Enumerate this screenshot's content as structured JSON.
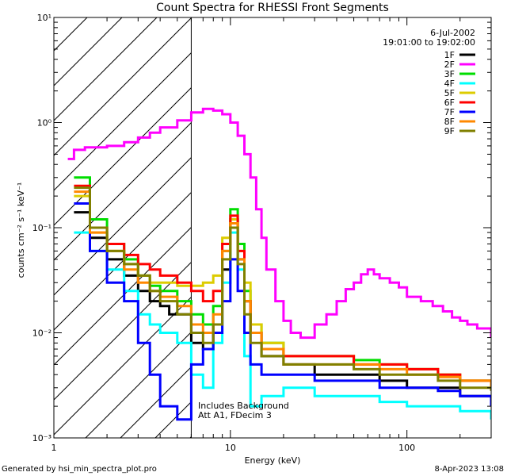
{
  "chart_data": {
    "type": "line",
    "title": "Count Spectra for RHESSI Front Segments",
    "xlabel": "Energy (keV)",
    "ylabel": "counts cm⁻² s⁻¹ keV⁻¹",
    "x_scale": "log",
    "y_scale": "log",
    "xlim": [
      1,
      300
    ],
    "ylim": [
      0.001,
      10
    ],
    "x_ticks": [
      {
        "value": 1,
        "label": "1"
      },
      {
        "value": 10,
        "label": "10"
      },
      {
        "value": 100,
        "label": "100"
      }
    ],
    "y_ticks": [
      {
        "value": 0.001,
        "label": "10⁻³"
      },
      {
        "value": 0.01,
        "label": "10⁻²"
      },
      {
        "value": 0.1,
        "label": "10⁻¹"
      },
      {
        "value": 1,
        "label": "10⁰"
      },
      {
        "value": 10,
        "label": "10¹"
      }
    ],
    "date": "6-Jul-2002",
    "time_range": "19:01:00 to 19:02:00",
    "hatched_region_max_keV": 6,
    "annotations": [
      "Includes Background",
      "Att A1, FDecim 3"
    ],
    "series": [
      {
        "name": "1F",
        "color": "#000000",
        "points": [
          [
            1.3,
            0.14
          ],
          [
            1.6,
            0.08
          ],
          [
            2,
            0.05
          ],
          [
            2.5,
            0.035
          ],
          [
            3,
            0.025
          ],
          [
            3.5,
            0.02
          ],
          [
            4,
            0.018
          ],
          [
            4.5,
            0.015
          ],
          [
            5,
            0.015
          ],
          [
            6,
            0.008
          ],
          [
            7,
            0.007
          ],
          [
            8,
            0.012
          ],
          [
            9,
            0.04
          ],
          [
            10,
            0.12
          ],
          [
            11,
            0.05
          ],
          [
            12,
            0.02
          ],
          [
            13,
            0.01
          ],
          [
            15,
            0.006
          ],
          [
            20,
            0.005
          ],
          [
            30,
            0.004
          ],
          [
            50,
            0.004
          ],
          [
            70,
            0.0035
          ],
          [
            100,
            0.003
          ],
          [
            150,
            0.003
          ],
          [
            200,
            0.0025
          ],
          [
            300,
            0.002
          ]
        ]
      },
      {
        "name": "2F",
        "color": "#ff00ff",
        "points": [
          [
            1.2,
            0.45
          ],
          [
            1.3,
            0.55
          ],
          [
            1.5,
            0.58
          ],
          [
            2,
            0.6
          ],
          [
            2.5,
            0.65
          ],
          [
            3,
            0.72
          ],
          [
            3.5,
            0.8
          ],
          [
            4,
            0.9
          ],
          [
            5,
            1.05
          ],
          [
            6,
            1.25
          ],
          [
            7,
            1.35
          ],
          [
            8,
            1.3
          ],
          [
            9,
            1.2
          ],
          [
            10,
            1.0
          ],
          [
            11,
            0.75
          ],
          [
            12,
            0.5
          ],
          [
            13,
            0.3
          ],
          [
            14,
            0.15
          ],
          [
            15,
            0.08
          ],
          [
            16,
            0.04
          ],
          [
            18,
            0.02
          ],
          [
            20,
            0.013
          ],
          [
            22,
            0.01
          ],
          [
            25,
            0.009
          ],
          [
            30,
            0.012
          ],
          [
            35,
            0.015
          ],
          [
            40,
            0.02
          ],
          [
            45,
            0.026
          ],
          [
            50,
            0.03
          ],
          [
            55,
            0.036
          ],
          [
            60,
            0.04
          ],
          [
            65,
            0.036
          ],
          [
            70,
            0.033
          ],
          [
            80,
            0.03
          ],
          [
            90,
            0.027
          ],
          [
            100,
            0.022
          ],
          [
            120,
            0.02
          ],
          [
            140,
            0.018
          ],
          [
            160,
            0.016
          ],
          [
            180,
            0.014
          ],
          [
            200,
            0.013
          ],
          [
            220,
            0.012
          ],
          [
            250,
            0.011
          ],
          [
            300,
            0.009
          ]
        ]
      },
      {
        "name": "3F",
        "color": "#00dd00",
        "points": [
          [
            1.3,
            0.3
          ],
          [
            1.6,
            0.12
          ],
          [
            2,
            0.07
          ],
          [
            2.5,
            0.05
          ],
          [
            3,
            0.035
          ],
          [
            3.5,
            0.028
          ],
          [
            4,
            0.025
          ],
          [
            5,
            0.02
          ],
          [
            6,
            0.015
          ],
          [
            7,
            0.012
          ],
          [
            8,
            0.018
          ],
          [
            9,
            0.06
          ],
          [
            10,
            0.15
          ],
          [
            11,
            0.07
          ],
          [
            12,
            0.025
          ],
          [
            13,
            0.012
          ],
          [
            15,
            0.008
          ],
          [
            20,
            0.006
          ],
          [
            30,
            0.006
          ],
          [
            50,
            0.0055
          ],
          [
            70,
            0.005
          ],
          [
            100,
            0.0045
          ],
          [
            150,
            0.004
          ],
          [
            200,
            0.0035
          ],
          [
            300,
            0.003
          ]
        ]
      },
      {
        "name": "4F",
        "color": "#00ffff",
        "points": [
          [
            1.3,
            0.09
          ],
          [
            1.6,
            0.06
          ],
          [
            2,
            0.04
          ],
          [
            2.5,
            0.025
          ],
          [
            3,
            0.015
          ],
          [
            3.5,
            0.012
          ],
          [
            4,
            0.01
          ],
          [
            5,
            0.008
          ],
          [
            6,
            0.004
          ],
          [
            7,
            0.003
          ],
          [
            8,
            0.008
          ],
          [
            9,
            0.03
          ],
          [
            10,
            0.09
          ],
          [
            11,
            0.04
          ],
          [
            12,
            0.006
          ],
          [
            13,
            0.002
          ],
          [
            15,
            0.0025
          ],
          [
            20,
            0.003
          ],
          [
            30,
            0.0025
          ],
          [
            50,
            0.0025
          ],
          [
            70,
            0.0022
          ],
          [
            100,
            0.002
          ],
          [
            150,
            0.002
          ],
          [
            200,
            0.0018
          ],
          [
            300,
            0.0015
          ]
        ]
      },
      {
        "name": "5F",
        "color": "#ddcc00",
        "points": [
          [
            1.3,
            0.2
          ],
          [
            1.6,
            0.09
          ],
          [
            2,
            0.06
          ],
          [
            2.5,
            0.045
          ],
          [
            3,
            0.035
          ],
          [
            3.5,
            0.03
          ],
          [
            4,
            0.03
          ],
          [
            5,
            0.028
          ],
          [
            6,
            0.028
          ],
          [
            7,
            0.03
          ],
          [
            8,
            0.035
          ],
          [
            9,
            0.08
          ],
          [
            10,
            0.12
          ],
          [
            11,
            0.06
          ],
          [
            12,
            0.03
          ],
          [
            13,
            0.012
          ],
          [
            15,
            0.008
          ],
          [
            20,
            0.006
          ],
          [
            30,
            0.006
          ],
          [
            50,
            0.005
          ],
          [
            70,
            0.005
          ],
          [
            100,
            0.0045
          ],
          [
            150,
            0.004
          ],
          [
            200,
            0.0035
          ],
          [
            300,
            0.003
          ]
        ]
      },
      {
        "name": "6F",
        "color": "#ff0000",
        "points": [
          [
            1.3,
            0.25
          ],
          [
            1.6,
            0.1
          ],
          [
            2,
            0.07
          ],
          [
            2.5,
            0.055
          ],
          [
            3,
            0.045
          ],
          [
            3.5,
            0.04
          ],
          [
            4,
            0.035
          ],
          [
            5,
            0.03
          ],
          [
            6,
            0.025
          ],
          [
            7,
            0.02
          ],
          [
            8,
            0.025
          ],
          [
            9,
            0.07
          ],
          [
            10,
            0.13
          ],
          [
            11,
            0.06
          ],
          [
            12,
            0.02
          ],
          [
            13,
            0.01
          ],
          [
            15,
            0.007
          ],
          [
            20,
            0.006
          ],
          [
            30,
            0.006
          ],
          [
            50,
            0.005
          ],
          [
            70,
            0.005
          ],
          [
            100,
            0.0045
          ],
          [
            150,
            0.004
          ],
          [
            200,
            0.0035
          ],
          [
            300,
            0.003
          ]
        ]
      },
      {
        "name": "7F",
        "color": "#0000ff",
        "points": [
          [
            1.3,
            0.17
          ],
          [
            1.6,
            0.06
          ],
          [
            2,
            0.03
          ],
          [
            2.5,
            0.02
          ],
          [
            3,
            0.008
          ],
          [
            3.5,
            0.004
          ],
          [
            4,
            0.002
          ],
          [
            5,
            0.0015
          ],
          [
            6,
            0.005
          ],
          [
            7,
            0.007
          ],
          [
            8,
            0.01
          ],
          [
            9,
            0.02
          ],
          [
            10,
            0.05
          ],
          [
            11,
            0.025
          ],
          [
            12,
            0.01
          ],
          [
            13,
            0.005
          ],
          [
            15,
            0.004
          ],
          [
            20,
            0.004
          ],
          [
            30,
            0.0035
          ],
          [
            50,
            0.0035
          ],
          [
            70,
            0.003
          ],
          [
            100,
            0.003
          ],
          [
            150,
            0.0028
          ],
          [
            200,
            0.0025
          ],
          [
            300,
            0.002
          ]
        ]
      },
      {
        "name": "8F",
        "color": "#ff8800",
        "points": [
          [
            1.3,
            0.22
          ],
          [
            1.6,
            0.09
          ],
          [
            2,
            0.06
          ],
          [
            2.5,
            0.04
          ],
          [
            3,
            0.03
          ],
          [
            3.5,
            0.025
          ],
          [
            4,
            0.022
          ],
          [
            5,
            0.018
          ],
          [
            6,
            0.012
          ],
          [
            7,
            0.01
          ],
          [
            8,
            0.015
          ],
          [
            9,
            0.06
          ],
          [
            10,
            0.11
          ],
          [
            11,
            0.05
          ],
          [
            12,
            0.02
          ],
          [
            13,
            0.01
          ],
          [
            15,
            0.007
          ],
          [
            20,
            0.005
          ],
          [
            30,
            0.005
          ],
          [
            50,
            0.005
          ],
          [
            70,
            0.0045
          ],
          [
            100,
            0.004
          ],
          [
            150,
            0.0038
          ],
          [
            200,
            0.0035
          ],
          [
            300,
            0.003
          ]
        ]
      },
      {
        "name": "9F",
        "color": "#808000",
        "points": [
          [
            1.3,
            0.24
          ],
          [
            1.6,
            0.1
          ],
          [
            2,
            0.06
          ],
          [
            2.5,
            0.045
          ],
          [
            3,
            0.035
          ],
          [
            3.5,
            0.025
          ],
          [
            4,
            0.02
          ],
          [
            5,
            0.015
          ],
          [
            6,
            0.01
          ],
          [
            7,
            0.008
          ],
          [
            8,
            0.012
          ],
          [
            9,
            0.05
          ],
          [
            10,
            0.1
          ],
          [
            11,
            0.045
          ],
          [
            12,
            0.015
          ],
          [
            13,
            0.008
          ],
          [
            15,
            0.006
          ],
          [
            20,
            0.005
          ],
          [
            30,
            0.005
          ],
          [
            50,
            0.0045
          ],
          [
            70,
            0.004
          ],
          [
            100,
            0.004
          ],
          [
            150,
            0.0035
          ],
          [
            200,
            0.003
          ],
          [
            300,
            0.0028
          ]
        ]
      }
    ]
  },
  "footer": {
    "generated_by": "Generated by hsi_min_spectra_plot.pro",
    "timestamp": "8-Apr-2023 13:08"
  }
}
